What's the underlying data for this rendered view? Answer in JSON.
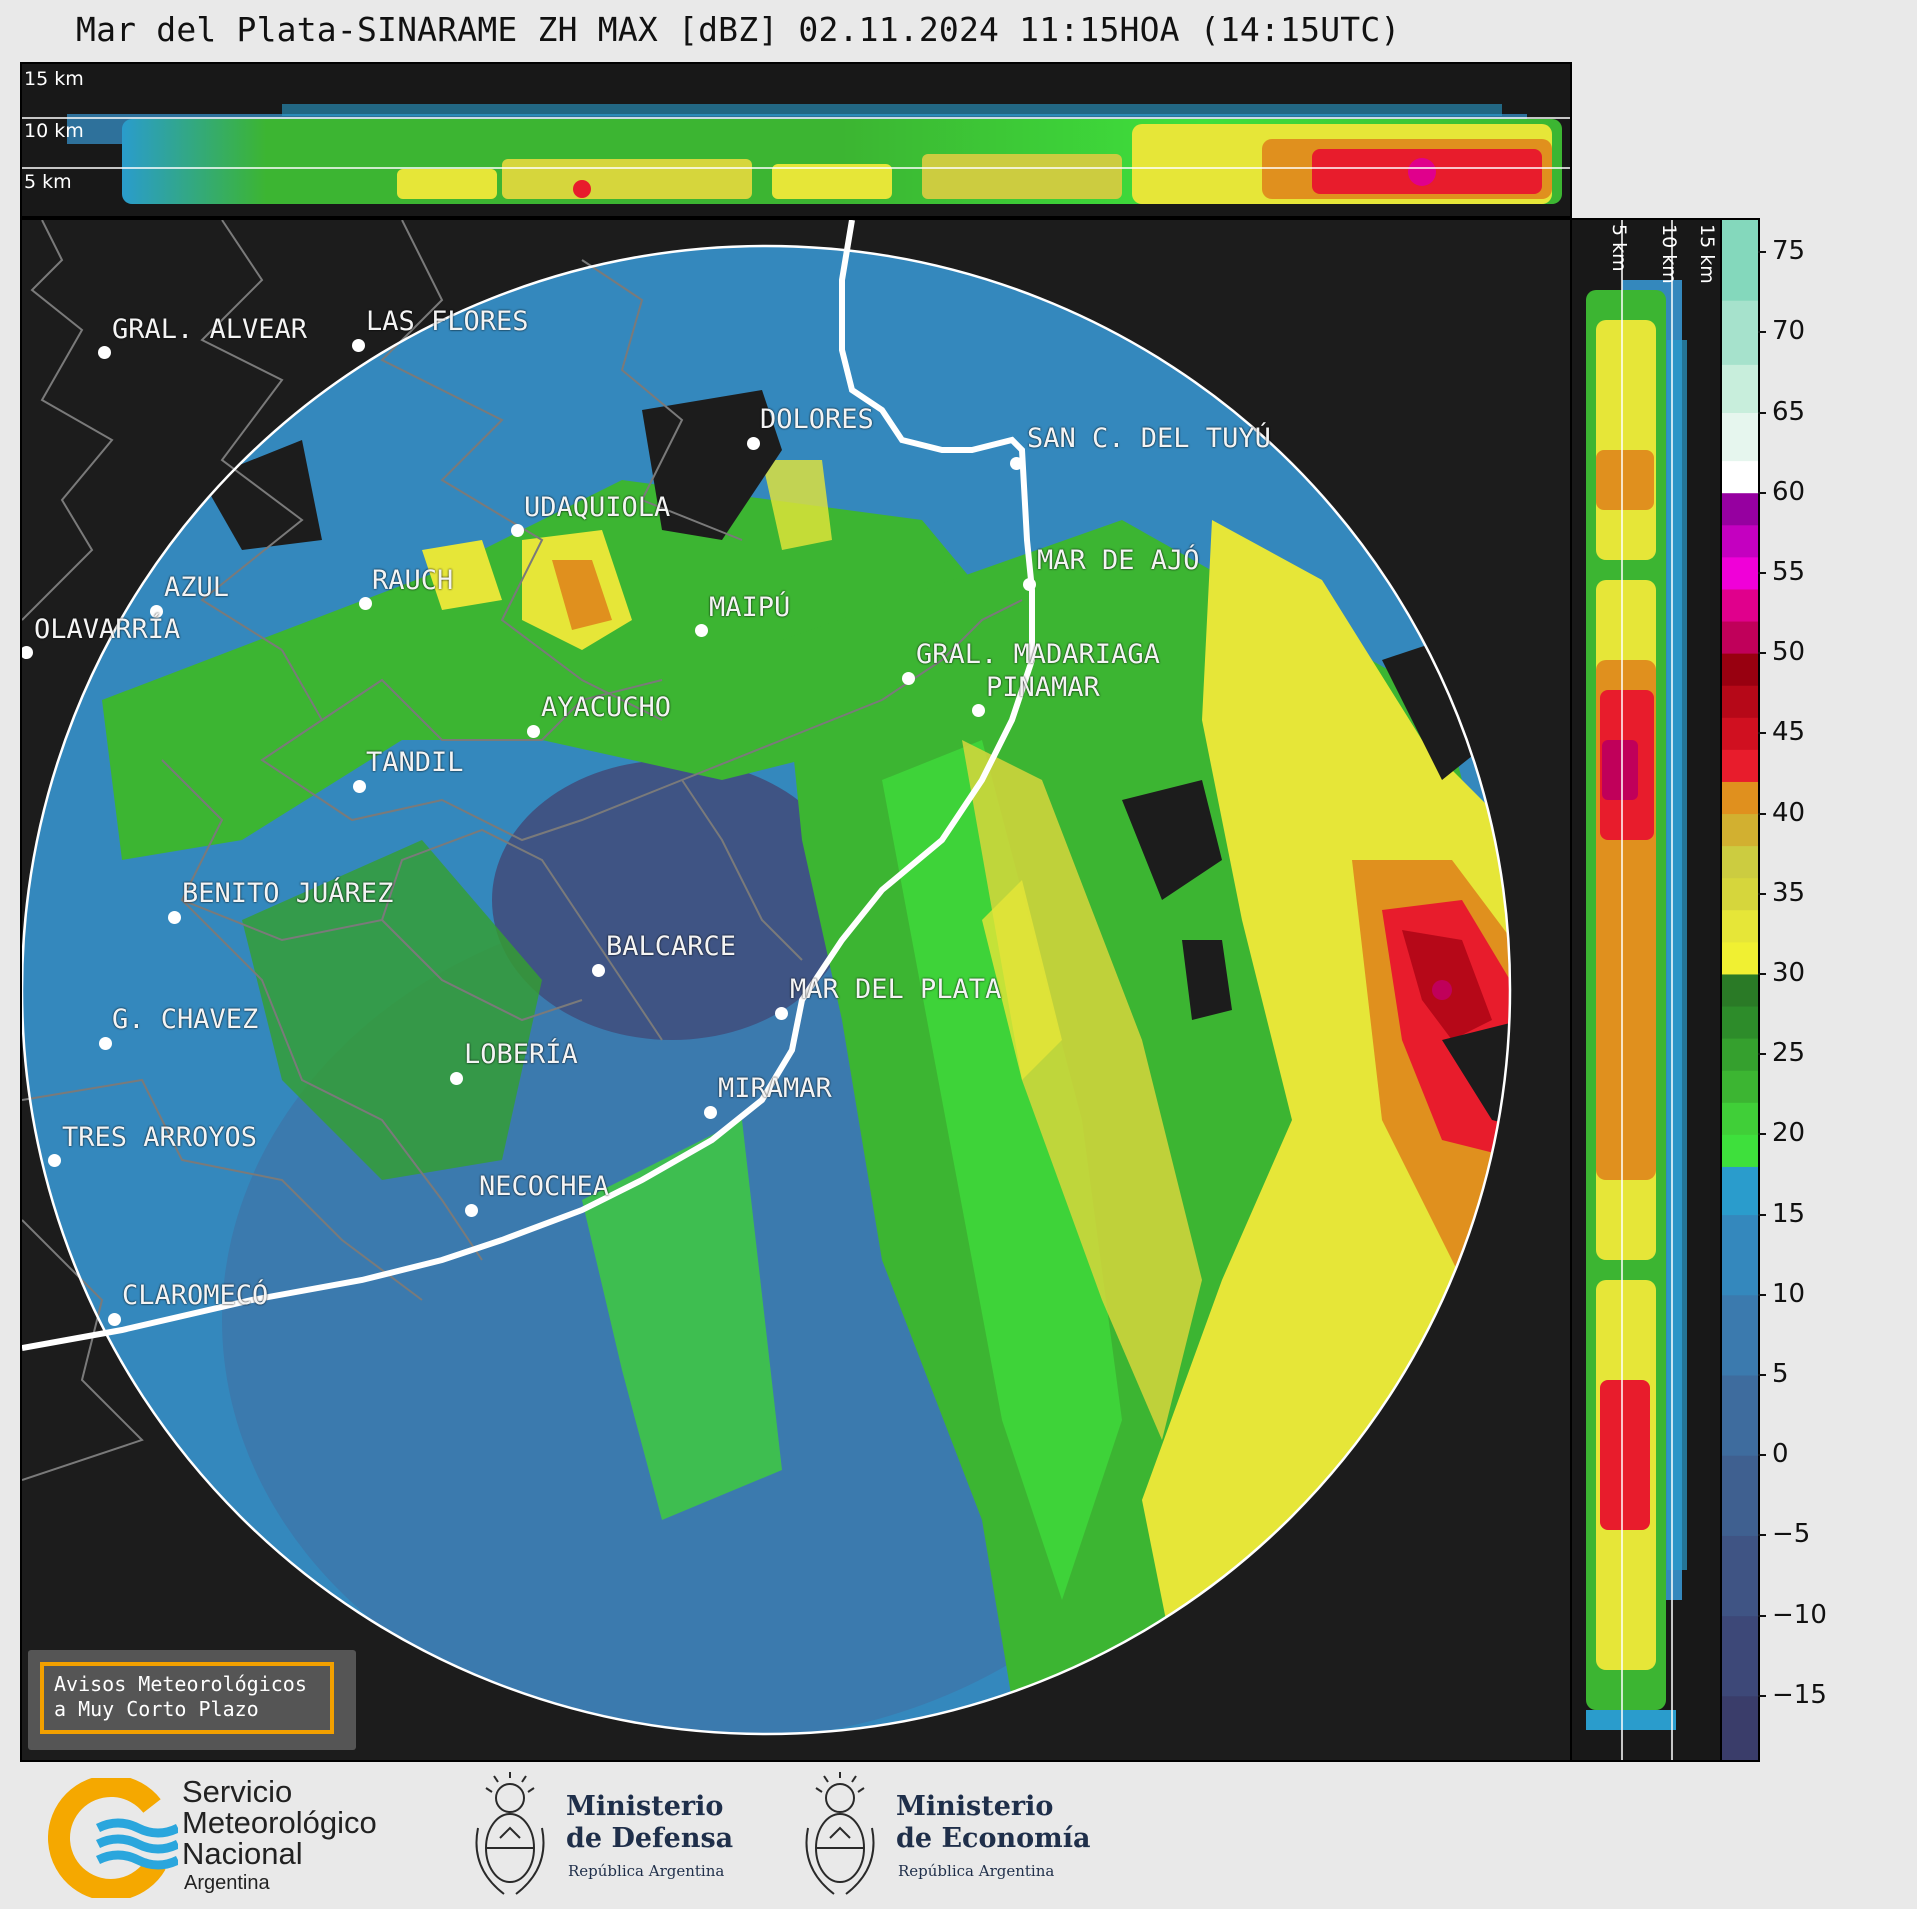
{
  "title": "Mar del Plata-SINARAME ZH MAX [dBZ] 02.11.2024 11:15HOA (14:15UTC)",
  "top_panel": {
    "height_labels": [
      "15 km",
      "10 km",
      "5 km"
    ]
  },
  "side_panel": {
    "height_labels": [
      "5 km",
      "10 km",
      "15 km"
    ]
  },
  "colorbar": {
    "min": -19,
    "max": 77,
    "ticks": [
      "75",
      "70",
      "65",
      "60",
      "55",
      "50",
      "45",
      "40",
      "35",
      "30",
      "25",
      "20",
      "15",
      "10",
      "5",
      "0",
      "−5",
      "−10",
      "−15"
    ],
    "tick_values": [
      75,
      70,
      65,
      60,
      55,
      50,
      45,
      40,
      35,
      30,
      25,
      20,
      15,
      10,
      5,
      0,
      -5,
      -10,
      -15
    ],
    "colors": [
      {
        "from": -19,
        "to": -15,
        "color": "#3a3d6a"
      },
      {
        "from": -15,
        "to": -10,
        "color": "#3d4878"
      },
      {
        "from": -10,
        "to": -5,
        "color": "#3f5484"
      },
      {
        "from": -5,
        "to": 0,
        "color": "#3f6090"
      },
      {
        "from": 0,
        "to": 5,
        "color": "#3e6c9e"
      },
      {
        "from": 5,
        "to": 10,
        "color": "#3b7aae"
      },
      {
        "from": 10,
        "to": 15,
        "color": "#3488bd"
      },
      {
        "from": 15,
        "to": 18,
        "color": "#2a9ccc"
      },
      {
        "from": 18,
        "to": 20,
        "color": "#3ee03c"
      },
      {
        "from": 20,
        "to": 22,
        "color": "#40cf38"
      },
      {
        "from": 22,
        "to": 24,
        "color": "#3cb532"
      },
      {
        "from": 24,
        "to": 26,
        "color": "#35a02e"
      },
      {
        "from": 26,
        "to": 28,
        "color": "#2d8c2a"
      },
      {
        "from": 28,
        "to": 30,
        "color": "#2a7a26"
      },
      {
        "from": 30,
        "to": 32,
        "color": "#f0f032"
      },
      {
        "from": 32,
        "to": 34,
        "color": "#e6e638"
      },
      {
        "from": 34,
        "to": 36,
        "color": "#d6d63c"
      },
      {
        "from": 36,
        "to": 38,
        "color": "#cccc40"
      },
      {
        "from": 38,
        "to": 40,
        "color": "#d2b030"
      },
      {
        "from": 40,
        "to": 42,
        "color": "#e0901e"
      },
      {
        "from": 42,
        "to": 44,
        "color": "#e81c2c"
      },
      {
        "from": 44,
        "to": 46,
        "color": "#d01020"
      },
      {
        "from": 46,
        "to": 48,
        "color": "#b60818"
      },
      {
        "from": 48,
        "to": 50,
        "color": "#980010"
      },
      {
        "from": 50,
        "to": 52,
        "color": "#c0005a"
      },
      {
        "from": 52,
        "to": 54,
        "color": "#e0008c"
      },
      {
        "from": 54,
        "to": 56,
        "color": "#f000d8"
      },
      {
        "from": 56,
        "to": 58,
        "color": "#c400c0"
      },
      {
        "from": 58,
        "to": 60,
        "color": "#9600a0"
      },
      {
        "from": 60,
        "to": 62,
        "color": "#ffffff"
      },
      {
        "from": 62,
        "to": 65,
        "color": "#e6f6ee"
      },
      {
        "from": 65,
        "to": 68,
        "color": "#c8eedc"
      },
      {
        "from": 68,
        "to": 72,
        "color": "#a6e2cc"
      },
      {
        "from": 72,
        "to": 77,
        "color": "#84d8bc"
      }
    ]
  },
  "cities": [
    {
      "name": "GRAL. ALVEAR",
      "key": "gral-alvear"
    },
    {
      "name": "LAS FLORES",
      "key": "las-flores"
    },
    {
      "name": "DOLORES",
      "key": "dolores"
    },
    {
      "name": "SAN C. DEL TUYÚ",
      "key": "san-clemente"
    },
    {
      "name": "UDAQUIOLA",
      "key": "udaquiola"
    },
    {
      "name": "AZUL",
      "key": "azul"
    },
    {
      "name": "RAUCH",
      "key": "rauch"
    },
    {
      "name": "OLAVARRÍA",
      "key": "olavarria"
    },
    {
      "name": "MAIPÚ",
      "key": "maipu"
    },
    {
      "name": "MAR DE AJÓ",
      "key": "mar-de-ajo"
    },
    {
      "name": "GRAL. MADARIAGA",
      "key": "madariaga"
    },
    {
      "name": "PINAMAR",
      "key": "pinamar"
    },
    {
      "name": "AYACUCHO",
      "key": "ayacucho"
    },
    {
      "name": "TANDIL",
      "key": "tandil"
    },
    {
      "name": "BENITO JUÁREZ",
      "key": "benito-juarez"
    },
    {
      "name": "BALCARCE",
      "key": "balcarce"
    },
    {
      "name": "MAR DEL PLATA",
      "key": "mar-del-plata"
    },
    {
      "name": "G. CHAVEZ",
      "key": "g-chavez"
    },
    {
      "name": "LOBERÍA",
      "key": "loberia"
    },
    {
      "name": "MIRAMAR",
      "key": "miramar"
    },
    {
      "name": "TRES ARROYOS",
      "key": "tres-arroyos"
    },
    {
      "name": "NECOCHEA",
      "key": "necochea"
    },
    {
      "name": "CLAROMECÓ",
      "key": "claromeco"
    }
  ],
  "warning_box": {
    "line1": "Avisos Meteorológicos",
    "line2": "a Muy Corto Plazo"
  },
  "logos": {
    "smn": {
      "line1": "Servicio",
      "line2": "Meteorológico",
      "line3": "Nacional",
      "line4": "Argentina"
    },
    "defensa": {
      "line1": "Ministerio",
      "line2": "de Defensa",
      "line3": "República Argentina"
    },
    "economia": {
      "line1": "Ministerio",
      "line2": "de Economía",
      "line3": "República Argentina"
    }
  },
  "colors": {
    "background": "#e9e9e9",
    "panel": "#1c1c1c",
    "warning_border": "#f2a000",
    "smn_orange": "#f5a800",
    "smn_blue": "#2aa6dd"
  }
}
